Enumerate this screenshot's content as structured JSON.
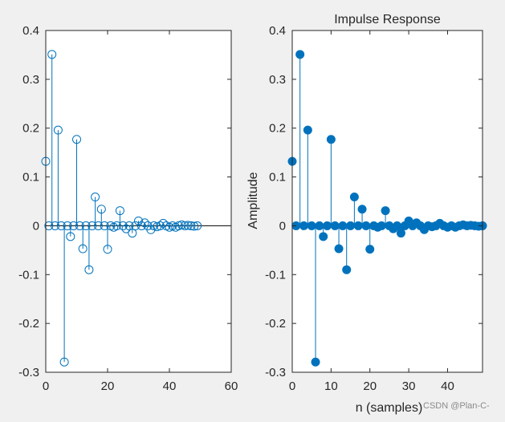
{
  "figure": {
    "background": "#f0f0f0",
    "axes_background": "#ffffff",
    "axes_color": "#262626",
    "watermark": "CSDN @Plan-C-"
  },
  "chart_data": [
    {
      "type": "stem",
      "marker": "open-circle",
      "color": "#0072bd",
      "title": "",
      "xlabel": "",
      "ylabel": "",
      "xlim": [
        0,
        60
      ],
      "ylim": [
        -0.3,
        0.4
      ],
      "xticks": [
        0,
        20,
        40,
        60
      ],
      "xtick_labels": [
        "0",
        "20",
        "40",
        "60"
      ],
      "yticks": [
        0.4,
        0.3,
        0.2,
        0.1,
        0,
        -0.1,
        -0.2,
        -0.3
      ],
      "ytick_labels": [
        "0.4",
        "0.3",
        "0.2",
        "0.1",
        "0",
        "-0.1",
        "-0.2",
        "-0.3"
      ],
      "baseline": 0,
      "x": [
        0,
        1,
        2,
        3,
        4,
        5,
        6,
        7,
        8,
        9,
        10,
        11,
        12,
        13,
        14,
        15,
        16,
        17,
        18,
        19,
        20,
        21,
        22,
        23,
        24,
        25,
        26,
        27,
        28,
        29,
        30,
        31,
        32,
        33,
        34,
        35,
        36,
        37,
        38,
        39,
        40,
        41,
        42,
        43,
        44,
        45,
        46,
        47,
        48,
        49
      ],
      "y": [
        0.132,
        0,
        0.351,
        0,
        0.196,
        0,
        -0.279,
        0,
        -0.022,
        0,
        0.177,
        0,
        -0.047,
        0,
        -0.09,
        0,
        0.059,
        0,
        0.034,
        0,
        -0.048,
        0,
        -0.003,
        0,
        0.031,
        0,
        -0.006,
        0,
        -0.015,
        0,
        0.01,
        0,
        0.006,
        0,
        -0.008,
        0,
        -0.002,
        0,
        0.005,
        0,
        -0.003,
        0,
        -0.003,
        0,
        0.002,
        0,
        0.001,
        0,
        -0.001,
        0
      ]
    },
    {
      "type": "stem",
      "marker": "filled-circle",
      "color": "#0072bd",
      "title": "Impulse Response",
      "xlabel": "n (samples)",
      "ylabel": "Amplitude",
      "xlim": [
        0,
        49
      ],
      "ylim": [
        -0.3,
        0.4
      ],
      "xticks": [
        0,
        10,
        20,
        30,
        40
      ],
      "xtick_labels": [
        "0",
        "10",
        "20",
        "30",
        "40"
      ],
      "yticks": [
        0.4,
        0.3,
        0.2,
        0.1,
        0,
        -0.1,
        -0.2,
        -0.3
      ],
      "ytick_labels": [
        "0.4",
        "0.3",
        "0.2",
        "0.1",
        "0",
        "-0.1",
        "-0.2",
        "-0.3"
      ],
      "baseline": null,
      "x": [
        0,
        1,
        2,
        3,
        4,
        5,
        6,
        7,
        8,
        9,
        10,
        11,
        12,
        13,
        14,
        15,
        16,
        17,
        18,
        19,
        20,
        21,
        22,
        23,
        24,
        25,
        26,
        27,
        28,
        29,
        30,
        31,
        32,
        33,
        34,
        35,
        36,
        37,
        38,
        39,
        40,
        41,
        42,
        43,
        44,
        45,
        46,
        47,
        48,
        49
      ],
      "y": [
        0.132,
        0,
        0.351,
        0,
        0.196,
        0,
        -0.279,
        0,
        -0.022,
        0,
        0.177,
        0,
        -0.047,
        0,
        -0.09,
        0,
        0.059,
        0,
        0.034,
        0,
        -0.048,
        0,
        -0.003,
        0,
        0.031,
        0,
        -0.006,
        0,
        -0.015,
        0,
        0.01,
        0,
        0.006,
        0,
        -0.008,
        0,
        -0.002,
        0,
        0.005,
        0,
        -0.003,
        0,
        -0.003,
        0,
        0.002,
        0,
        0.001,
        0,
        -0.001,
        0
      ]
    }
  ]
}
